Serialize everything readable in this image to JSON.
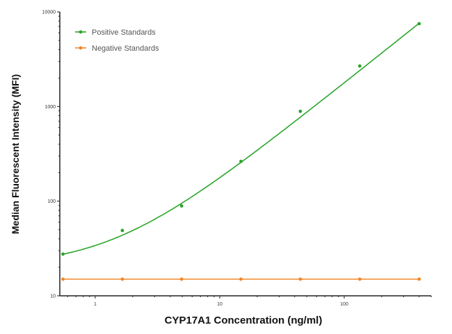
{
  "chart_data": {
    "type": "scatter",
    "title": "",
    "xlabel": "CYP17A1 Concentration (ng/ml)",
    "ylabel": "Median  Fluorescent Intensity  (MFI)",
    "xscale": "log",
    "yscale": "log",
    "xlim": [
      0.52,
      500
    ],
    "ylim": [
      10,
      10000
    ],
    "grid": false,
    "legend_position": "top-left",
    "x_ticks": [
      {
        "value": 1,
        "label": "1"
      },
      {
        "value": 10,
        "label": "10"
      },
      {
        "value": 100,
        "label": "100"
      }
    ],
    "y_ticks": [
      {
        "value": 10,
        "label": "10"
      },
      {
        "value": 100,
        "label": "100"
      },
      {
        "value": 1000,
        "label": "1000"
      },
      {
        "value": 10000,
        "label": "10000"
      }
    ],
    "series": [
      {
        "name": "Positive Standards",
        "color": "#2aa52a",
        "fit_curve": true,
        "x": [
          0.55,
          1.65,
          4.94,
          14.8,
          44.4,
          133.3,
          400
        ],
        "y": [
          27.6,
          49,
          89,
          263,
          890,
          2680,
          7500
        ]
      },
      {
        "name": "Negative Standards",
        "color": "#f0882a",
        "fit_curve": true,
        "x": [
          0.55,
          1.65,
          4.94,
          14.8,
          44.4,
          133.3,
          400
        ],
        "y": [
          15,
          15,
          15,
          15,
          15,
          15,
          15
        ]
      }
    ]
  }
}
